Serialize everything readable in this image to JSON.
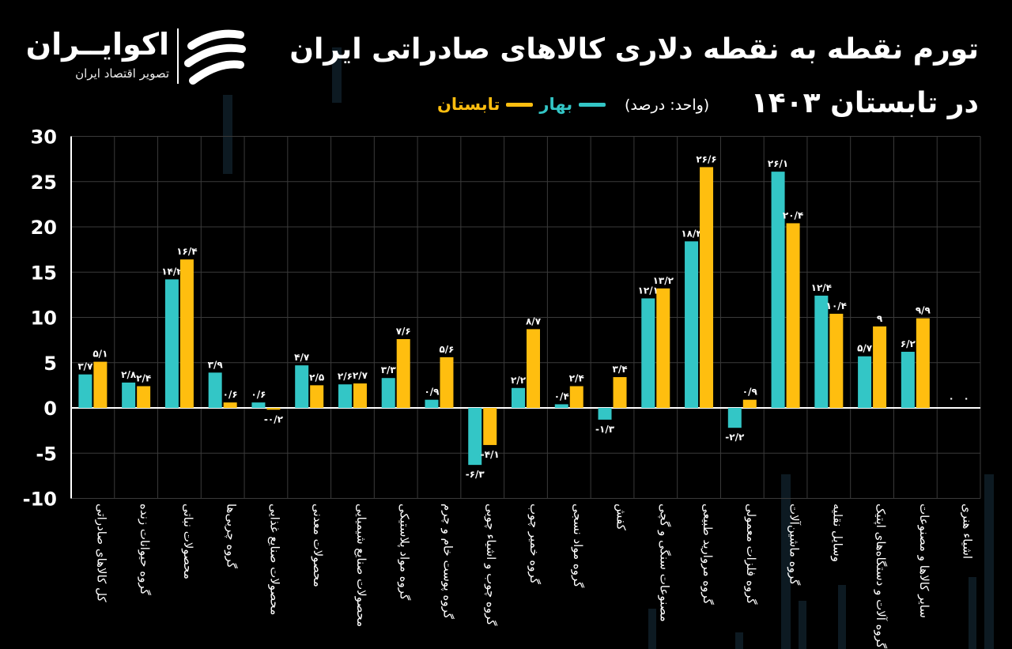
{
  "header": {
    "title_line1": "تورم نقطه به نقطه دلاری کالاهای صادراتی ایران",
    "title_line2": "در تابستان ۱۴۰۳",
    "unit": "(واحد: درصد)"
  },
  "logo": {
    "name": "اکوایــران",
    "subtitle": "تصویر اقتصاد ایران",
    "icon": "ecoiran-swoosh-icon"
  },
  "colors": {
    "spring": "#33c6c6",
    "summer": "#ffbe0f",
    "axis": "#ffffff",
    "grid": "#3a3a3a"
  },
  "chart_data": {
    "type": "bar",
    "categories": [
      "کل کالاهای صادراتی",
      "گروه حیوانات زنده",
      "محصولات نباتی",
      "گروه چربی‌ها",
      "محصولات صنایع غذایی",
      "محصولات معدنی",
      "محصولات صنایع شیمیایی",
      "گروه مواد پلاستیکی",
      "گروه پوست خام و چرم",
      "گروه چوب و اشیاء چوبی",
      "گروه خمیر چوب",
      "گروه مواد نسجی",
      "کفش",
      "مصنوعات سنگی و گچی",
      "گروه مروارید طبیعی",
      "گروه فلزات معمولی",
      "گروه ماشین‌آلات",
      "وسایل نقلیه",
      "گروه آلات و دستگاه‌های اپتیک",
      "سایر کالاها و مصنوعات",
      "اشیاء هنری"
    ],
    "series": [
      {
        "name": "بهار",
        "values": [
          3.7,
          2.8,
          14.2,
          3.9,
          0.6,
          4.7,
          2.6,
          3.3,
          0.9,
          -6.3,
          2.2,
          0.4,
          -1.3,
          12.1,
          18.4,
          -2.2,
          26.1,
          12.4,
          5.7,
          6.2,
          0
        ]
      },
      {
        "name": "تابستان",
        "values": [
          5.1,
          2.4,
          16.4,
          0.6,
          -0.2,
          2.5,
          2.7,
          7.6,
          5.6,
          -4.1,
          8.7,
          2.4,
          3.4,
          13.2,
          26.6,
          0.9,
          20.4,
          10.4,
          9,
          9.9,
          0
        ]
      }
    ],
    "data_labels": [
      [
        "۳/۷",
        "۲/۸",
        "۱۴/۲",
        "۳/۹",
        "۰/۶",
        "۴/۷",
        "۲/۶",
        "۳/۳",
        "۰/۹",
        "-۶/۳",
        "۲/۲",
        "۰/۴",
        "-۱/۳",
        "۱۲/۱",
        "۱۸/۴",
        "-۲/۲",
        "۲۶/۱",
        "۱۲/۴",
        "۵/۷",
        "۶/۲",
        "۰"
      ],
      [
        "۵/۱",
        "۲/۴",
        "۱۶/۴",
        "۰/۶",
        "-۰/۲",
        "۲/۵",
        "۲/۷",
        "۷/۶",
        "۵/۶",
        "-۴/۱",
        "۸/۷",
        "۲/۴",
        "۳/۴",
        "۱۳/۲",
        "۲۶/۶",
        "۰/۹",
        "۲۰/۴",
        "۱۰/۴",
        "۹",
        "۹/۹",
        "۰"
      ]
    ],
    "yticks": [
      "30",
      "25",
      "20",
      "15",
      "10",
      "5",
      "0",
      "-5",
      "-10"
    ],
    "ytick_values": [
      30,
      25,
      20,
      15,
      10,
      5,
      0,
      -5,
      -10
    ],
    "ylim": [
      -10,
      30
    ],
    "grid": true,
    "legend_position": "top-center"
  }
}
